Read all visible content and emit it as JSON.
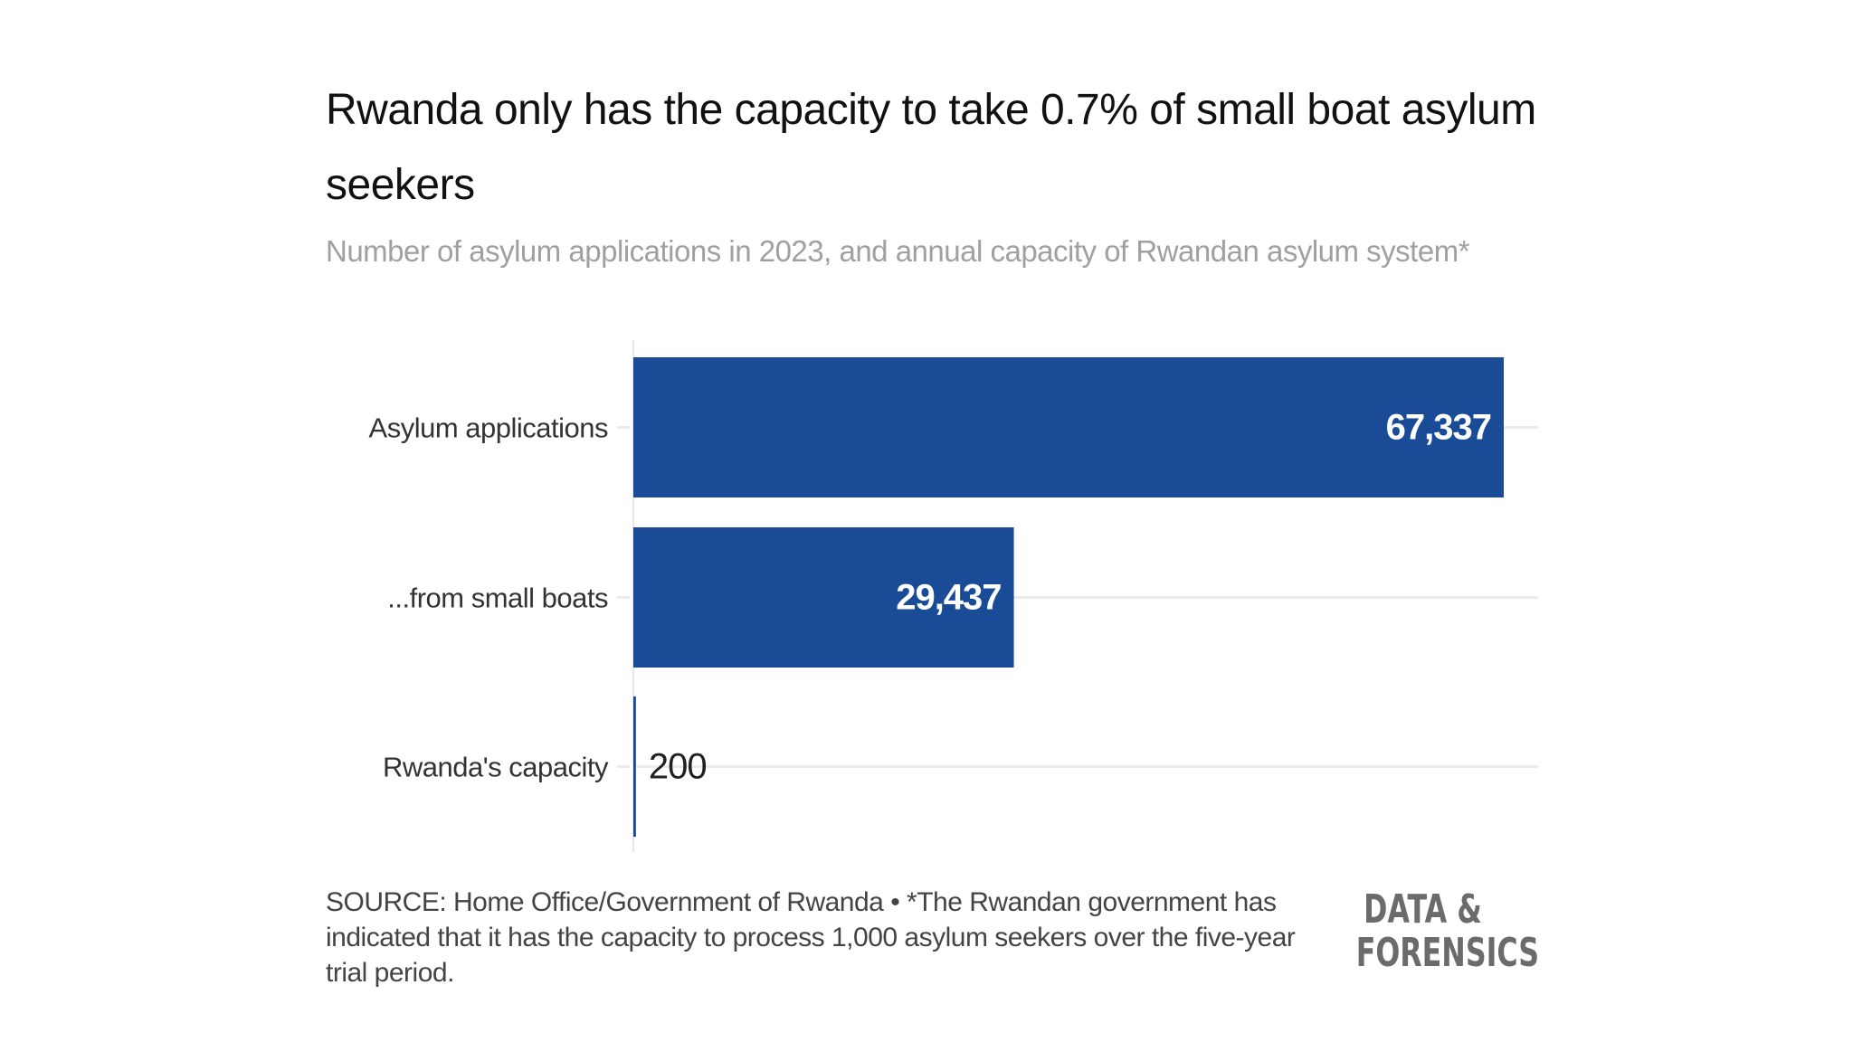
{
  "header": {
    "title": "Rwanda only has the capacity to take 0.7% of small boat asylum seekers",
    "subtitle": "Number of asylum applications in 2023, and annual capacity of Rwandan asylum system*"
  },
  "chart_data": {
    "type": "bar",
    "orientation": "horizontal",
    "title": "Rwanda only has the capacity to take 0.7% of small boat asylum seekers",
    "subtitle": "Number of asylum applications in 2023, and annual capacity of Rwandan asylum system*",
    "categories": [
      "Asylum applications",
      "...from small boats",
      "Rwanda's capacity"
    ],
    "values": [
      67337,
      29437,
      200
    ],
    "value_labels": [
      "67,337",
      "29,437",
      "200"
    ],
    "xlabel": "",
    "ylabel": "",
    "xlim": [
      0,
      67337
    ],
    "grid": true,
    "bar_color": "#1a4b96"
  },
  "footer": {
    "source": "SOURCE: Home Office/Government of Rwanda • *The Rwandan government has indicated that it has the capacity to process 1,000 asylum seekers over the five-year trial period.",
    "logo_line1": "DATA &",
    "logo_line2": "FORENSICS"
  }
}
